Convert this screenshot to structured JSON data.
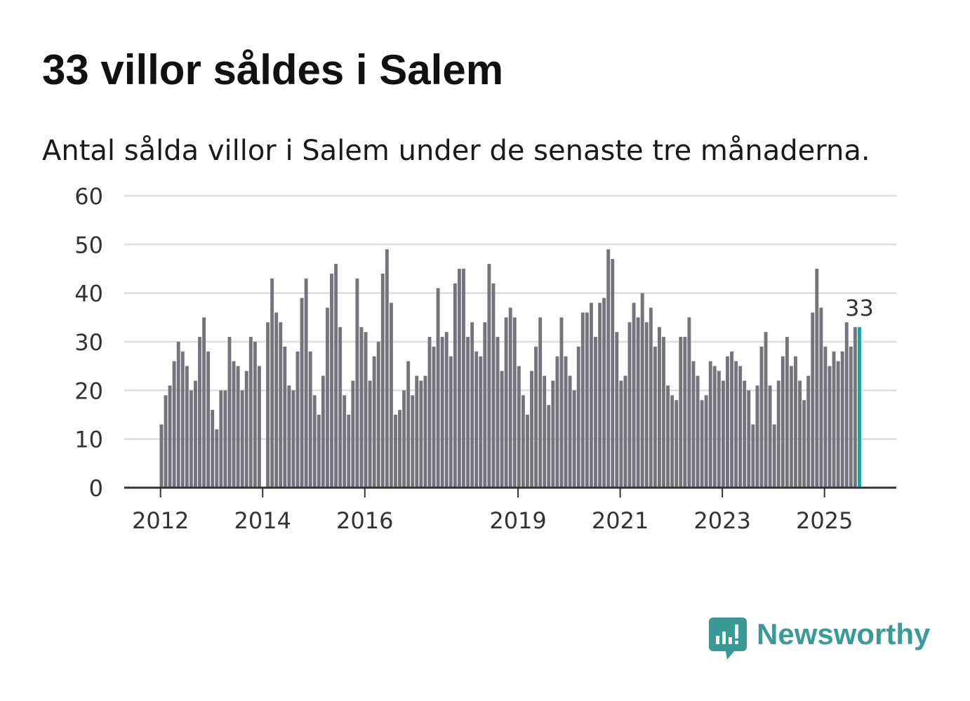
{
  "title": "33 villor såldes i Salem",
  "subtitle": "Antal sålda villor i Salem under de senaste tre månaderna.",
  "brand": {
    "name": "Newsworthy",
    "icon": "newsworthy-logo-icon"
  },
  "colors": {
    "bar": "#74747a",
    "highlight": "#20a39b",
    "grid": "#dddddd",
    "axis": "#333333",
    "brand": "#3a9a96"
  },
  "chart_data": {
    "type": "bar",
    "title": "33 villor såldes i Salem",
    "subtitle": "Antal sålda villor i Salem under de senaste tre månaderna.",
    "xlabel": "",
    "ylabel": "",
    "ylim": [
      0,
      60
    ],
    "yticks": [
      0,
      10,
      20,
      30,
      40,
      50,
      60
    ],
    "yticklabels": [
      "0",
      "10",
      "20",
      "30",
      "40",
      "50",
      "60"
    ],
    "xticklabels": [
      {
        "label": "2012",
        "index": 0
      },
      {
        "label": "2014",
        "index": 24
      },
      {
        "label": "2016",
        "index": 48
      },
      {
        "label": "2019",
        "index": 84
      },
      {
        "label": "2021",
        "index": 108
      },
      {
        "label": "2023",
        "index": 132
      },
      {
        "label": "2025",
        "index": 156
      }
    ],
    "grid": true,
    "start_period": "2012-01",
    "values": [
      13,
      19,
      21,
      26,
      30,
      28,
      25,
      20,
      22,
      31,
      35,
      28,
      16,
      12,
      20,
      20,
      31,
      26,
      25,
      20,
      24,
      31,
      30,
      25,
      0,
      34,
      43,
      36,
      34,
      29,
      21,
      20,
      28,
      39,
      43,
      28,
      19,
      15,
      23,
      37,
      44,
      46,
      33,
      19,
      15,
      22,
      43,
      33,
      32,
      22,
      27,
      30,
      44,
      49,
      38,
      15,
      16,
      20,
      26,
      19,
      23,
      22,
      23,
      31,
      29,
      41,
      31,
      32,
      27,
      42,
      45,
      45,
      31,
      34,
      28,
      27,
      34,
      46,
      42,
      31,
      24,
      35,
      37,
      35,
      25,
      19,
      15,
      24,
      29,
      35,
      23,
      17,
      22,
      27,
      35,
      27,
      23,
      20,
      29,
      36,
      36,
      38,
      31,
      38,
      39,
      49,
      47,
      32,
      22,
      23,
      34,
      38,
      35,
      40,
      34,
      37,
      29,
      33,
      31,
      21,
      19,
      18,
      31,
      31,
      35,
      26,
      23,
      18,
      19,
      26,
      25,
      24,
      22,
      27,
      28,
      26,
      25,
      22,
      20,
      13,
      21,
      29,
      32,
      21,
      13,
      22,
      27,
      31,
      25,
      27,
      22,
      18,
      23,
      36,
      45,
      37,
      29,
      25,
      28,
      26,
      28,
      34,
      29,
      33,
      33
    ],
    "highlight": {
      "index": 164,
      "value": 33,
      "label": "33"
    }
  }
}
